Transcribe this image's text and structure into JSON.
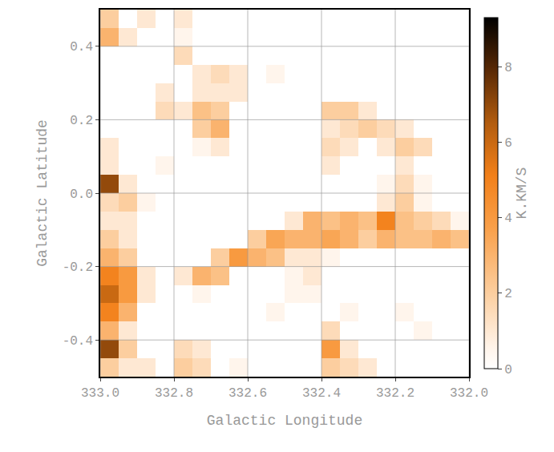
{
  "chart_data": {
    "type": "heatmap",
    "x_label": "Galactic Longitude",
    "y_label": "Galactic Latitude",
    "colorbar_title": "K.KM/S",
    "x": [
      332.975,
      332.925,
      332.875,
      332.825,
      332.775,
      332.725,
      332.675,
      332.625,
      332.575,
      332.525,
      332.475,
      332.425,
      332.375,
      332.325,
      332.275,
      332.225,
      332.175,
      332.125,
      332.075,
      332.025
    ],
    "y": [
      -0.475,
      -0.425,
      -0.375,
      -0.325,
      -0.275,
      -0.225,
      -0.175,
      -0.125,
      -0.075,
      -0.025,
      0.025,
      0.075,
      0.125,
      0.175,
      0.225,
      0.275,
      0.325,
      0.375,
      0.425,
      0.475
    ],
    "z": [
      [
        2,
        1,
        1,
        0,
        2,
        1.5,
        0,
        0.5,
        0,
        0,
        0,
        0,
        2,
        1.5,
        1,
        0,
        0,
        0,
        0,
        0
      ],
      [
        7,
        2,
        0,
        0,
        1.5,
        1,
        0,
        0,
        0,
        0,
        0,
        0,
        4,
        1,
        0,
        0,
        0,
        0,
        0,
        0
      ],
      [
        3,
        1,
        0,
        0,
        0,
        0,
        0,
        0,
        0,
        0,
        0,
        0,
        1.5,
        0,
        0,
        0,
        0,
        0.5,
        0,
        0
      ],
      [
        5,
        3,
        0,
        0,
        0,
        0,
        0,
        0,
        0,
        0.5,
        0,
        0,
        0,
        0.5,
        0,
        0,
        0.5,
        0,
        0,
        0
      ],
      [
        6,
        4,
        1,
        0,
        0,
        0.5,
        0,
        0,
        0,
        0,
        0.5,
        0.5,
        0,
        0,
        0,
        0,
        0,
        0,
        0,
        0
      ],
      [
        5,
        4,
        1,
        0,
        1,
        3,
        2.5,
        0,
        0,
        0,
        0.5,
        1,
        0,
        0,
        0,
        0,
        0,
        0,
        0,
        0
      ],
      [
        3,
        2,
        0,
        0,
        0,
        0,
        2,
        4,
        3,
        2.5,
        1,
        1,
        0.5,
        0,
        0,
        0,
        0,
        0,
        0,
        0
      ],
      [
        2,
        1,
        0,
        0,
        0,
        0,
        0,
        0,
        2,
        3.5,
        3,
        3,
        3.5,
        3,
        2,
        3,
        2.5,
        2.5,
        3,
        2.5
      ],
      [
        1,
        1,
        0,
        0,
        0,
        0,
        0,
        0,
        0,
        0,
        1,
        3,
        2.5,
        3,
        2.5,
        5,
        2.5,
        2,
        1.5,
        0.5
      ],
      [
        1.5,
        2,
        0.5,
        0,
        0,
        0,
        0,
        0,
        0,
        0,
        0,
        0,
        0,
        0,
        0,
        1,
        2,
        0.5,
        0,
        0
      ],
      [
        7,
        1,
        0,
        0,
        0,
        0,
        0,
        0,
        0,
        0,
        0,
        0,
        0,
        0,
        0,
        0.5,
        1.5,
        0.5,
        0,
        0
      ],
      [
        1,
        0,
        0,
        0.5,
        0,
        0,
        0,
        0,
        0,
        0,
        0,
        0,
        1,
        0,
        0,
        0,
        1,
        0,
        0,
        0
      ],
      [
        1,
        0,
        0,
        0,
        0,
        0.5,
        1,
        0,
        0,
        0,
        0,
        0,
        1.5,
        1,
        0,
        1,
        2,
        1.5,
        0,
        0
      ],
      [
        0,
        0,
        0,
        0,
        0,
        2,
        3,
        0,
        0,
        0,
        0,
        0,
        1,
        1.5,
        2,
        1.5,
        1,
        0,
        0,
        0
      ],
      [
        0,
        0,
        0,
        1.5,
        1,
        2.5,
        2,
        0,
        0,
        0,
        0,
        0,
        2,
        2,
        1,
        0,
        0,
        0,
        0,
        0
      ],
      [
        0,
        0,
        0,
        1,
        0,
        1,
        1,
        1,
        0,
        0,
        0,
        0,
        0,
        0,
        0,
        0,
        0,
        0,
        0,
        0
      ],
      [
        0,
        0,
        0,
        0,
        0,
        1,
        1.5,
        1,
        0,
        0.5,
        0,
        0,
        0,
        0,
        0,
        0,
        0,
        0,
        0,
        0
      ],
      [
        0,
        0,
        0,
        0,
        1.5,
        0,
        0,
        0,
        0,
        0,
        0,
        0,
        0,
        0,
        0,
        0,
        0,
        0,
        0,
        0
      ],
      [
        3,
        1,
        0,
        0,
        0.5,
        0,
        0,
        0,
        0,
        0,
        0,
        0,
        0,
        0,
        0,
        0,
        0,
        0,
        0,
        0
      ],
      [
        2,
        0,
        1,
        0,
        1,
        0,
        0,
        0,
        0,
        0,
        0,
        0,
        0,
        0,
        0,
        0,
        0,
        0,
        0,
        0
      ]
    ],
    "xlim": [
      333.0,
      332.0
    ],
    "xticks": [
      {
        "value": 333,
        "label": "333.0"
      },
      332.8,
      332.6,
      332.4,
      332.2,
      {
        "value": 332,
        "label": "332.0"
      }
    ],
    "ylim": [
      -0.5,
      0.5
    ],
    "yticks": [
      -0.4,
      -0.2,
      {
        "value": 0,
        "label": "0.0"
      },
      0.2,
      0.4
    ],
    "colorbar_range": [
      0,
      9.3
    ],
    "colorbar_ticks": [
      0,
      2,
      4,
      6,
      8
    ],
    "grid": true
  }
}
